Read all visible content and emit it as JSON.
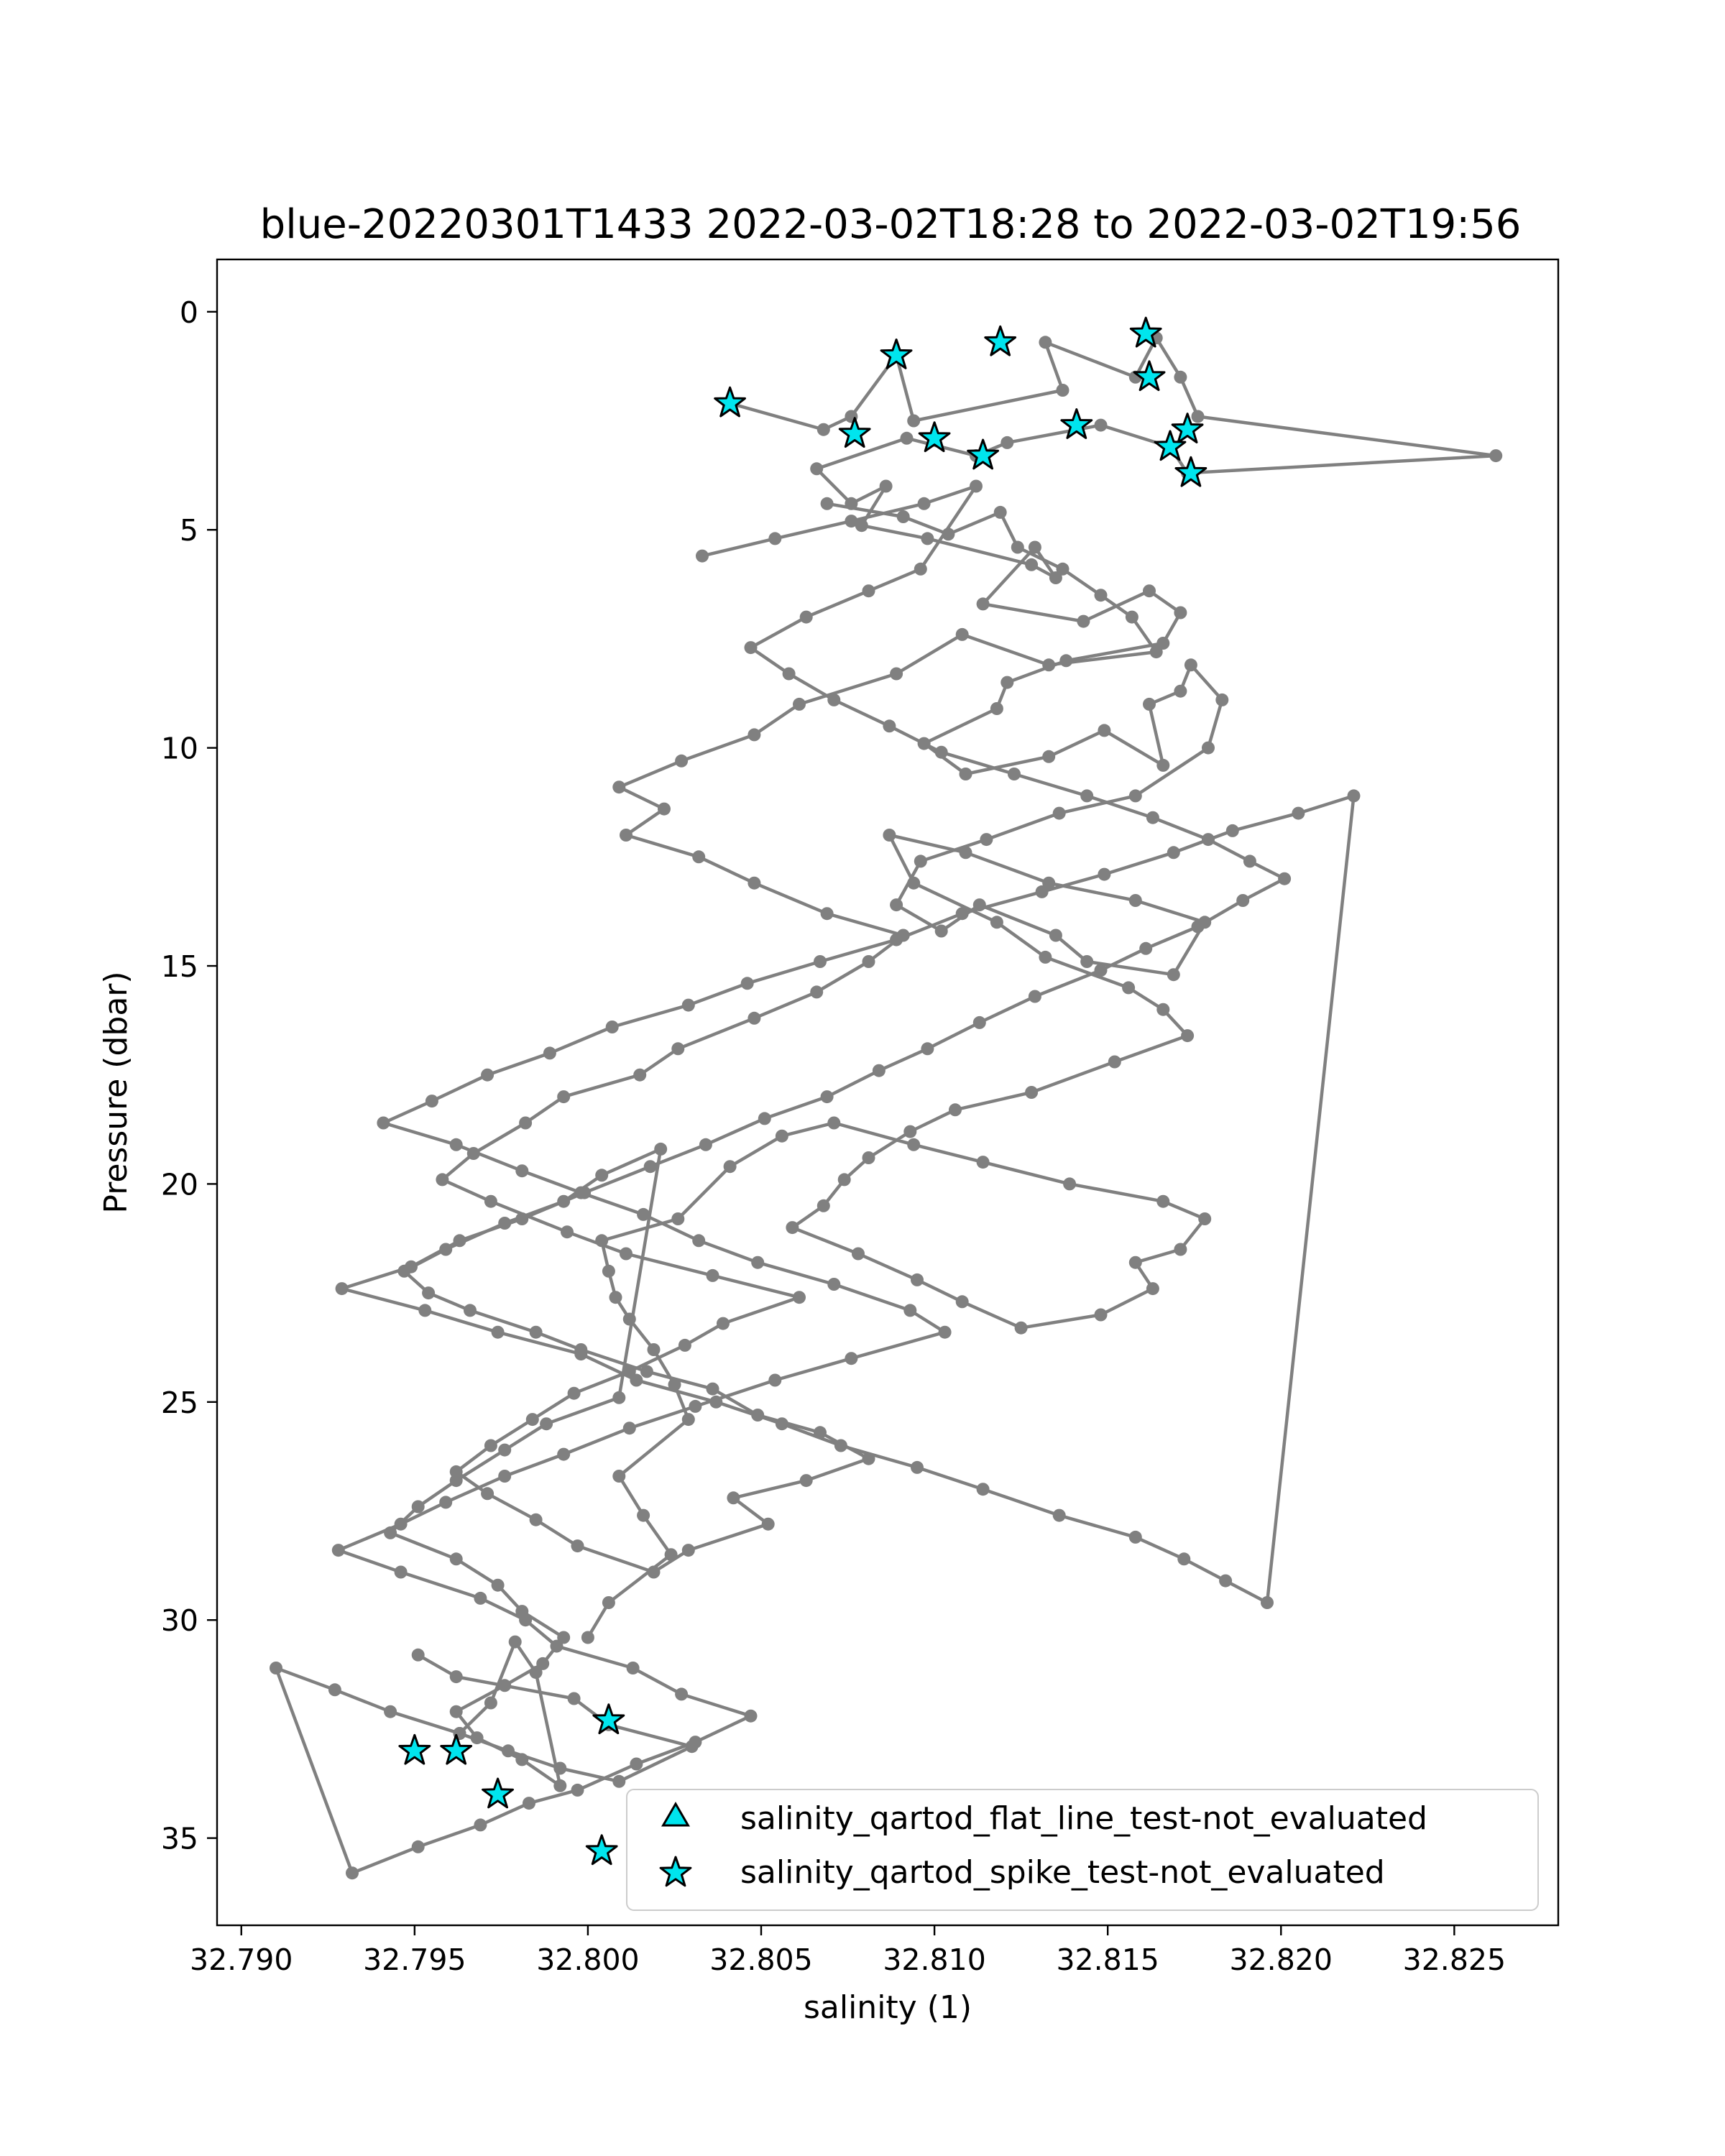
{
  "chart_data": {
    "type": "scatter",
    "title": "blue-20220301T1433 2022-03-02T18:28 to 2022-03-02T19:56",
    "xlabel": "salinity (1)",
    "ylabel": "Pressure (dbar)",
    "xlim": [
      32.7893,
      32.828
    ],
    "ylim": [
      37.0,
      -1.2
    ],
    "y_inverted": true,
    "grid": false,
    "legend_position": "lower-right",
    "x_ticks": [
      "32.790",
      "32.795",
      "32.800",
      "32.805",
      "32.810",
      "32.815",
      "32.820",
      "32.825"
    ],
    "x_tick_values": [
      32.79,
      32.795,
      32.8,
      32.805,
      32.81,
      32.815,
      32.82,
      32.825
    ],
    "y_ticks": [
      "0",
      "5",
      "10",
      "15",
      "20",
      "25",
      "30",
      "35"
    ],
    "y_tick_values": [
      0,
      5,
      10,
      15,
      20,
      25,
      30,
      35
    ],
    "colors": {
      "profile_line": "#808080",
      "marker_fill": "#00e5ee",
      "marker_edge": "#000000"
    },
    "series": [
      {
        "x": [
          32.8041,
          32.8068,
          32.8076,
          32.8089,
          32.8094,
          32.8137,
          32.8132,
          32.8158,
          32.8164,
          32.8171,
          32.8176,
          32.8262,
          32.8173,
          32.8168,
          32.8148,
          32.8121,
          32.8112,
          32.8092,
          32.8066,
          32.8076,
          32.8086,
          32.8079,
          32.8098,
          32.8128,
          32.8135,
          32.8129,
          32.8114,
          32.8143,
          32.8162,
          32.8171,
          32.8166,
          32.8138,
          32.8121,
          32.8118,
          32.8097,
          32.8109,
          32.8133,
          32.8149,
          32.8166,
          32.8162,
          32.8171,
          32.8174,
          32.8183,
          32.8179,
          32.8158,
          32.8136,
          32.8115,
          32.8096,
          32.8089,
          32.8102,
          32.8113,
          32.8135,
          32.8144,
          32.8169,
          32.8178,
          32.8158,
          32.8133,
          32.8109,
          32.8087,
          32.8094,
          32.8118,
          32.8132,
          32.8156,
          32.8166,
          32.8173,
          32.8152,
          32.8128,
          32.8106,
          32.8093,
          32.8081,
          32.8074,
          32.8068,
          32.8059,
          32.8078,
          32.8095,
          32.8108,
          32.8125,
          32.8148,
          32.8163,
          32.8158,
          32.8171,
          32.8178,
          32.8166,
          32.8139,
          32.8114,
          32.8094,
          32.8071,
          32.8056,
          32.8041,
          32.8026,
          32.8004,
          32.8006,
          32.8008,
          32.8012,
          32.8019,
          32.8025,
          32.8029,
          32.8009,
          32.8016,
          32.8024,
          32.8006,
          32.8
        ],
        "y": [
          2.1,
          2.7,
          2.4,
          1.0,
          2.5,
          1.8,
          0.7,
          1.5,
          0.6,
          1.5,
          2.4,
          3.3,
          3.7,
          3.1,
          2.6,
          3.0,
          3.3,
          2.9,
          3.6,
          4.4,
          4.0,
          4.9,
          5.2,
          5.8,
          6.1,
          5.4,
          6.7,
          7.1,
          6.4,
          6.9,
          7.6,
          8.0,
          8.5,
          9.1,
          9.9,
          10.6,
          10.2,
          9.6,
          10.4,
          9.0,
          8.7,
          8.1,
          8.9,
          10.0,
          11.1,
          11.5,
          12.1,
          12.6,
          13.6,
          14.2,
          13.6,
          14.3,
          14.9,
          15.2,
          14.0,
          13.5,
          13.1,
          12.4,
          12.0,
          13.1,
          14.0,
          14.8,
          15.5,
          16.0,
          16.6,
          17.2,
          17.9,
          18.3,
          18.8,
          19.4,
          19.9,
          20.5,
          21.0,
          21.6,
          22.2,
          22.7,
          23.3,
          23.0,
          22.4,
          21.8,
          21.5,
          20.8,
          20.4,
          20.0,
          19.5,
          19.1,
          18.6,
          18.9,
          19.6,
          20.8,
          21.3,
          22.0,
          22.6,
          23.1,
          23.8,
          24.6,
          25.4,
          26.7,
          27.6,
          28.5,
          29.6,
          30.4
        ]
      },
      {
        "x": [
          32.8069,
          32.8091,
          32.8104,
          32.8119,
          32.8124,
          32.8137,
          32.8148,
          32.8157,
          32.8164,
          32.8133,
          32.8108,
          32.8089,
          32.8061,
          32.8048,
          32.8027,
          32.8009,
          32.8022,
          32.8011,
          32.8032,
          32.8048,
          32.8069,
          32.8091,
          32.8081,
          32.8066,
          32.8048,
          32.8026,
          32.8015,
          32.7993,
          32.7982,
          32.7967,
          32.7958,
          32.7972,
          32.7994,
          32.8011,
          32.8036,
          32.8061,
          32.8039,
          32.8028,
          32.8012,
          32.7996,
          32.7984,
          32.7972,
          32.7962,
          32.7971,
          32.7985,
          32.7997,
          32.8019,
          32.8029,
          32.8052,
          32.8042,
          32.8063,
          32.8081,
          32.8067,
          32.8049,
          32.8036,
          32.8017,
          32.7998,
          32.7985,
          32.7966,
          32.7954,
          32.7947,
          32.7959,
          32.7976,
          32.7993,
          32.8004,
          32.8021,
          32.8009,
          32.7988,
          32.7976,
          32.7962,
          32.7951,
          32.7943,
          32.7962,
          32.7974,
          32.7981,
          32.7993,
          32.7987,
          32.7976,
          32.7962,
          32.7968,
          32.7981,
          32.7992,
          32.7985,
          32.7979,
          32.7972,
          32.7963
        ],
        "y": [
          4.4,
          4.7,
          5.1,
          4.6,
          5.4,
          5.9,
          6.5,
          7.0,
          7.8,
          8.1,
          7.4,
          8.3,
          9.0,
          9.7,
          10.3,
          10.9,
          11.4,
          12.0,
          12.5,
          13.1,
          13.8,
          14.3,
          14.9,
          15.6,
          16.2,
          16.9,
          17.5,
          18.0,
          18.6,
          19.3,
          19.9,
          20.4,
          21.1,
          21.6,
          22.1,
          22.6,
          23.2,
          23.7,
          24.3,
          24.8,
          25.4,
          26.0,
          26.6,
          27.1,
          27.7,
          28.3,
          28.9,
          28.4,
          27.8,
          27.2,
          26.8,
          26.3,
          25.7,
          25.3,
          24.7,
          24.3,
          23.8,
          23.4,
          22.9,
          22.5,
          22.0,
          21.5,
          20.9,
          20.4,
          19.8,
          19.2,
          24.9,
          25.5,
          26.1,
          26.8,
          27.4,
          28.0,
          28.6,
          29.2,
          29.8,
          30.4,
          31.0,
          31.5,
          32.1,
          32.7,
          33.2,
          33.8,
          31.2,
          30.5,
          31.9,
          32.6
        ]
      },
      {
        "x": [
          32.8033,
          32.8054,
          32.8076,
          32.8097,
          32.8112,
          32.8096,
          32.8081,
          32.8063,
          32.8047,
          32.8058,
          32.8071,
          32.8087,
          32.8102,
          32.8123,
          32.8144,
          32.8163,
          32.8179,
          32.8191,
          32.8201,
          32.8189,
          32.8176,
          32.8161,
          32.8148,
          32.8129,
          32.8113,
          32.8098,
          32.8084,
          32.8069,
          32.8051,
          32.8034,
          32.8018,
          32.7999,
          32.7981,
          32.7963,
          32.7949,
          32.7929,
          32.7953,
          32.7974,
          32.7998,
          32.8014,
          32.8037,
          32.8056,
          32.8073,
          32.8095,
          32.8114,
          32.8136,
          32.8158,
          32.8172,
          32.8184,
          32.8196,
          32.8221,
          32.8205,
          32.8186,
          32.8169,
          32.8149,
          32.8131,
          32.8108,
          32.8089,
          32.8067,
          32.8046,
          32.8029,
          32.8007,
          32.7989,
          32.7971,
          32.7955,
          32.7941,
          32.7962,
          32.7981,
          32.7998,
          32.8016,
          32.8032,
          32.8049,
          32.8071,
          32.8093,
          32.8103,
          32.8076,
          32.8054,
          32.8031,
          32.8012,
          32.7993,
          32.7976,
          32.7959,
          32.7946,
          32.7928,
          32.7946,
          32.7969,
          32.7982,
          32.7991,
          32.8013,
          32.8027,
          32.8047,
          32.8031,
          32.8014,
          32.7997,
          32.7983,
          32.7969,
          32.7951,
          32.7932,
          32.791,
          32.7927,
          32.7943,
          32.7963,
          32.7977,
          32.7992,
          32.8009,
          32.803,
          32.8006,
          32.7996,
          32.7962,
          32.7951
        ],
        "y": [
          5.6,
          5.2,
          4.8,
          4.4,
          4.0,
          5.9,
          6.4,
          7.0,
          7.7,
          8.3,
          8.9,
          9.5,
          10.1,
          10.6,
          11.1,
          11.6,
          12.1,
          12.6,
          13.0,
          13.5,
          14.1,
          14.6,
          15.1,
          15.7,
          16.3,
          16.9,
          17.4,
          18.0,
          18.5,
          19.1,
          19.6,
          20.2,
          20.8,
          21.3,
          21.9,
          22.4,
          22.9,
          23.4,
          23.9,
          24.5,
          25.0,
          25.5,
          26.0,
          26.5,
          27.0,
          27.6,
          28.1,
          28.6,
          29.1,
          29.6,
          11.1,
          11.5,
          11.9,
          12.4,
          12.9,
          13.3,
          13.8,
          14.4,
          14.9,
          15.4,
          15.9,
          16.4,
          17.0,
          17.5,
          18.1,
          18.6,
          19.1,
          19.7,
          20.2,
          20.7,
          21.3,
          21.8,
          22.3,
          22.9,
          23.4,
          24.0,
          24.5,
          25.1,
          25.6,
          26.2,
          26.7,
          27.3,
          27.8,
          28.4,
          28.9,
          29.5,
          30.0,
          30.6,
          31.1,
          31.7,
          32.2,
          32.8,
          33.3,
          33.9,
          34.2,
          34.7,
          35.2,
          35.8,
          31.1,
          31.6,
          32.1,
          32.6,
          33.0,
          33.4,
          33.7,
          32.9,
          32.4,
          31.8,
          31.3,
          30.8
        ]
      }
    ],
    "flagged": {
      "flat_line": {
        "name": "salinity_qartod_flat_line_test-not_evaluated",
        "marker": "triangle",
        "x": [],
        "y": []
      },
      "spike": {
        "name": "salinity_qartod_spike_test-not_evaluated",
        "marker": "star",
        "x": [
          32.8041,
          32.8089,
          32.8119,
          32.8161,
          32.8162,
          32.8173,
          32.8168,
          32.8174,
          32.8141,
          32.8114,
          32.81,
          32.8077,
          32.795,
          32.7962,
          32.7974,
          32.8006,
          32.8004
        ],
        "y": [
          2.1,
          1.0,
          0.7,
          0.5,
          1.5,
          2.7,
          3.1,
          3.7,
          2.6,
          3.3,
          2.9,
          2.8,
          33.0,
          33.0,
          34.0,
          32.3,
          35.3
        ]
      }
    },
    "legend": [
      {
        "label": "salinity_qartod_flat_line_test-not_evaluated",
        "marker": "triangle"
      },
      {
        "label": "salinity_qartod_spike_test-not_evaluated",
        "marker": "star"
      }
    ]
  }
}
